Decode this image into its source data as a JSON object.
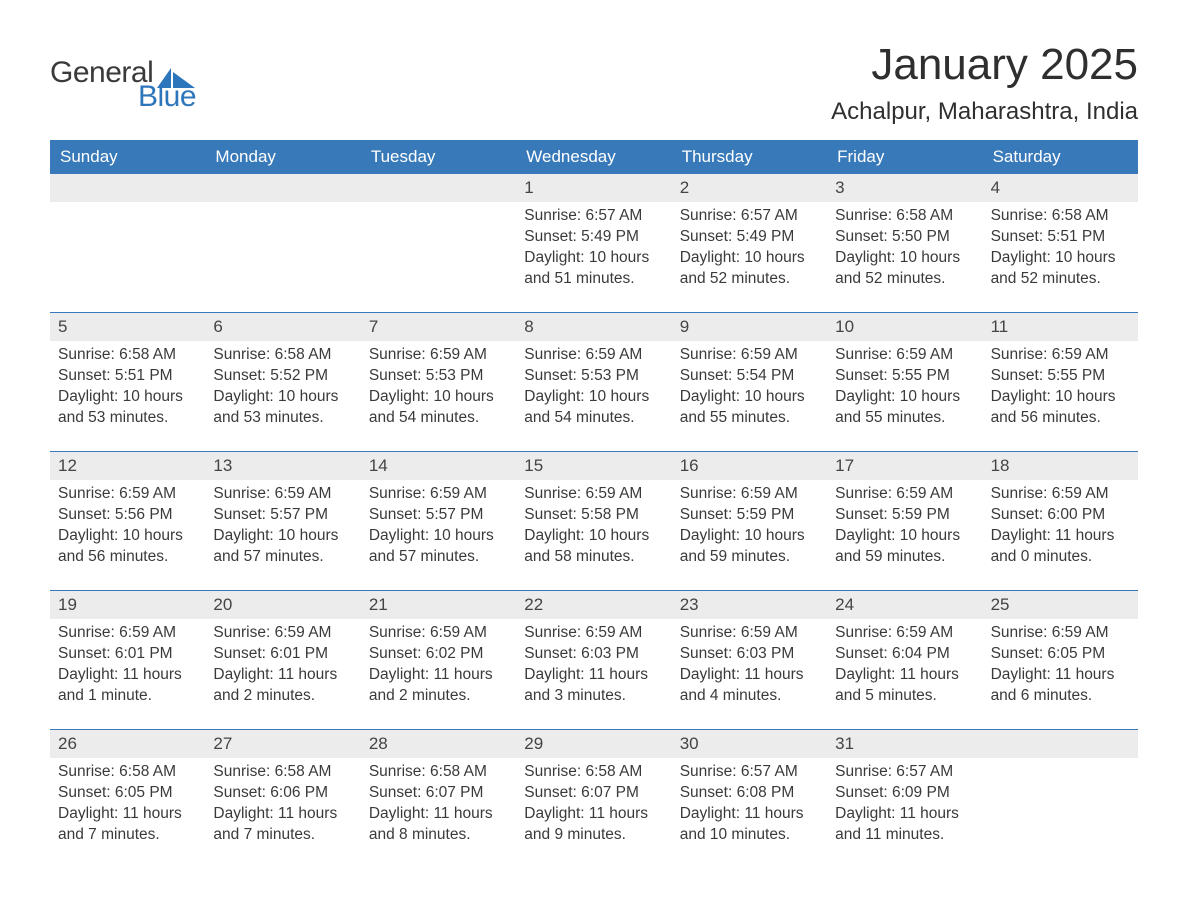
{
  "brand": {
    "general": "General",
    "blue": "Blue",
    "accent_color": "#2d76bb"
  },
  "header": {
    "month_title": "January 2025",
    "location": "Achalpur, Maharashtra, India"
  },
  "theme": {
    "header_bg": "#3879b9",
    "header_text": "#ffffff",
    "daynum_bg": "#ececec",
    "body_text": "#3a3a3a",
    "rule_color": "#3879b9",
    "background": "#ffffff",
    "title_fontsize": 44,
    "location_fontsize": 24,
    "weekday_fontsize": 17,
    "body_fontsize": 15.5
  },
  "weekdays": [
    "Sunday",
    "Monday",
    "Tuesday",
    "Wednesday",
    "Thursday",
    "Friday",
    "Saturday"
  ],
  "weeks": [
    [
      null,
      null,
      null,
      {
        "n": "1",
        "sr": "Sunrise: 6:57 AM",
        "ss": "Sunset: 5:49 PM",
        "d1": "Daylight: 10 hours",
        "d2": "and 51 minutes."
      },
      {
        "n": "2",
        "sr": "Sunrise: 6:57 AM",
        "ss": "Sunset: 5:49 PM",
        "d1": "Daylight: 10 hours",
        "d2": "and 52 minutes."
      },
      {
        "n": "3",
        "sr": "Sunrise: 6:58 AM",
        "ss": "Sunset: 5:50 PM",
        "d1": "Daylight: 10 hours",
        "d2": "and 52 minutes."
      },
      {
        "n": "4",
        "sr": "Sunrise: 6:58 AM",
        "ss": "Sunset: 5:51 PM",
        "d1": "Daylight: 10 hours",
        "d2": "and 52 minutes."
      }
    ],
    [
      {
        "n": "5",
        "sr": "Sunrise: 6:58 AM",
        "ss": "Sunset: 5:51 PM",
        "d1": "Daylight: 10 hours",
        "d2": "and 53 minutes."
      },
      {
        "n": "6",
        "sr": "Sunrise: 6:58 AM",
        "ss": "Sunset: 5:52 PM",
        "d1": "Daylight: 10 hours",
        "d2": "and 53 minutes."
      },
      {
        "n": "7",
        "sr": "Sunrise: 6:59 AM",
        "ss": "Sunset: 5:53 PM",
        "d1": "Daylight: 10 hours",
        "d2": "and 54 minutes."
      },
      {
        "n": "8",
        "sr": "Sunrise: 6:59 AM",
        "ss": "Sunset: 5:53 PM",
        "d1": "Daylight: 10 hours",
        "d2": "and 54 minutes."
      },
      {
        "n": "9",
        "sr": "Sunrise: 6:59 AM",
        "ss": "Sunset: 5:54 PM",
        "d1": "Daylight: 10 hours",
        "d2": "and 55 minutes."
      },
      {
        "n": "10",
        "sr": "Sunrise: 6:59 AM",
        "ss": "Sunset: 5:55 PM",
        "d1": "Daylight: 10 hours",
        "d2": "and 55 minutes."
      },
      {
        "n": "11",
        "sr": "Sunrise: 6:59 AM",
        "ss": "Sunset: 5:55 PM",
        "d1": "Daylight: 10 hours",
        "d2": "and 56 minutes."
      }
    ],
    [
      {
        "n": "12",
        "sr": "Sunrise: 6:59 AM",
        "ss": "Sunset: 5:56 PM",
        "d1": "Daylight: 10 hours",
        "d2": "and 56 minutes."
      },
      {
        "n": "13",
        "sr": "Sunrise: 6:59 AM",
        "ss": "Sunset: 5:57 PM",
        "d1": "Daylight: 10 hours",
        "d2": "and 57 minutes."
      },
      {
        "n": "14",
        "sr": "Sunrise: 6:59 AM",
        "ss": "Sunset: 5:57 PM",
        "d1": "Daylight: 10 hours",
        "d2": "and 57 minutes."
      },
      {
        "n": "15",
        "sr": "Sunrise: 6:59 AM",
        "ss": "Sunset: 5:58 PM",
        "d1": "Daylight: 10 hours",
        "d2": "and 58 minutes."
      },
      {
        "n": "16",
        "sr": "Sunrise: 6:59 AM",
        "ss": "Sunset: 5:59 PM",
        "d1": "Daylight: 10 hours",
        "d2": "and 59 minutes."
      },
      {
        "n": "17",
        "sr": "Sunrise: 6:59 AM",
        "ss": "Sunset: 5:59 PM",
        "d1": "Daylight: 10 hours",
        "d2": "and 59 minutes."
      },
      {
        "n": "18",
        "sr": "Sunrise: 6:59 AM",
        "ss": "Sunset: 6:00 PM",
        "d1": "Daylight: 11 hours",
        "d2": "and 0 minutes."
      }
    ],
    [
      {
        "n": "19",
        "sr": "Sunrise: 6:59 AM",
        "ss": "Sunset: 6:01 PM",
        "d1": "Daylight: 11 hours",
        "d2": "and 1 minute."
      },
      {
        "n": "20",
        "sr": "Sunrise: 6:59 AM",
        "ss": "Sunset: 6:01 PM",
        "d1": "Daylight: 11 hours",
        "d2": "and 2 minutes."
      },
      {
        "n": "21",
        "sr": "Sunrise: 6:59 AM",
        "ss": "Sunset: 6:02 PM",
        "d1": "Daylight: 11 hours",
        "d2": "and 2 minutes."
      },
      {
        "n": "22",
        "sr": "Sunrise: 6:59 AM",
        "ss": "Sunset: 6:03 PM",
        "d1": "Daylight: 11 hours",
        "d2": "and 3 minutes."
      },
      {
        "n": "23",
        "sr": "Sunrise: 6:59 AM",
        "ss": "Sunset: 6:03 PM",
        "d1": "Daylight: 11 hours",
        "d2": "and 4 minutes."
      },
      {
        "n": "24",
        "sr": "Sunrise: 6:59 AM",
        "ss": "Sunset: 6:04 PM",
        "d1": "Daylight: 11 hours",
        "d2": "and 5 minutes."
      },
      {
        "n": "25",
        "sr": "Sunrise: 6:59 AM",
        "ss": "Sunset: 6:05 PM",
        "d1": "Daylight: 11 hours",
        "d2": "and 6 minutes."
      }
    ],
    [
      {
        "n": "26",
        "sr": "Sunrise: 6:58 AM",
        "ss": "Sunset: 6:05 PM",
        "d1": "Daylight: 11 hours",
        "d2": "and 7 minutes."
      },
      {
        "n": "27",
        "sr": "Sunrise: 6:58 AM",
        "ss": "Sunset: 6:06 PM",
        "d1": "Daylight: 11 hours",
        "d2": "and 7 minutes."
      },
      {
        "n": "28",
        "sr": "Sunrise: 6:58 AM",
        "ss": "Sunset: 6:07 PM",
        "d1": "Daylight: 11 hours",
        "d2": "and 8 minutes."
      },
      {
        "n": "29",
        "sr": "Sunrise: 6:58 AM",
        "ss": "Sunset: 6:07 PM",
        "d1": "Daylight: 11 hours",
        "d2": "and 9 minutes."
      },
      {
        "n": "30",
        "sr": "Sunrise: 6:57 AM",
        "ss": "Sunset: 6:08 PM",
        "d1": "Daylight: 11 hours",
        "d2": "and 10 minutes."
      },
      {
        "n": "31",
        "sr": "Sunrise: 6:57 AM",
        "ss": "Sunset: 6:09 PM",
        "d1": "Daylight: 11 hours",
        "d2": "and 11 minutes."
      },
      null
    ]
  ]
}
